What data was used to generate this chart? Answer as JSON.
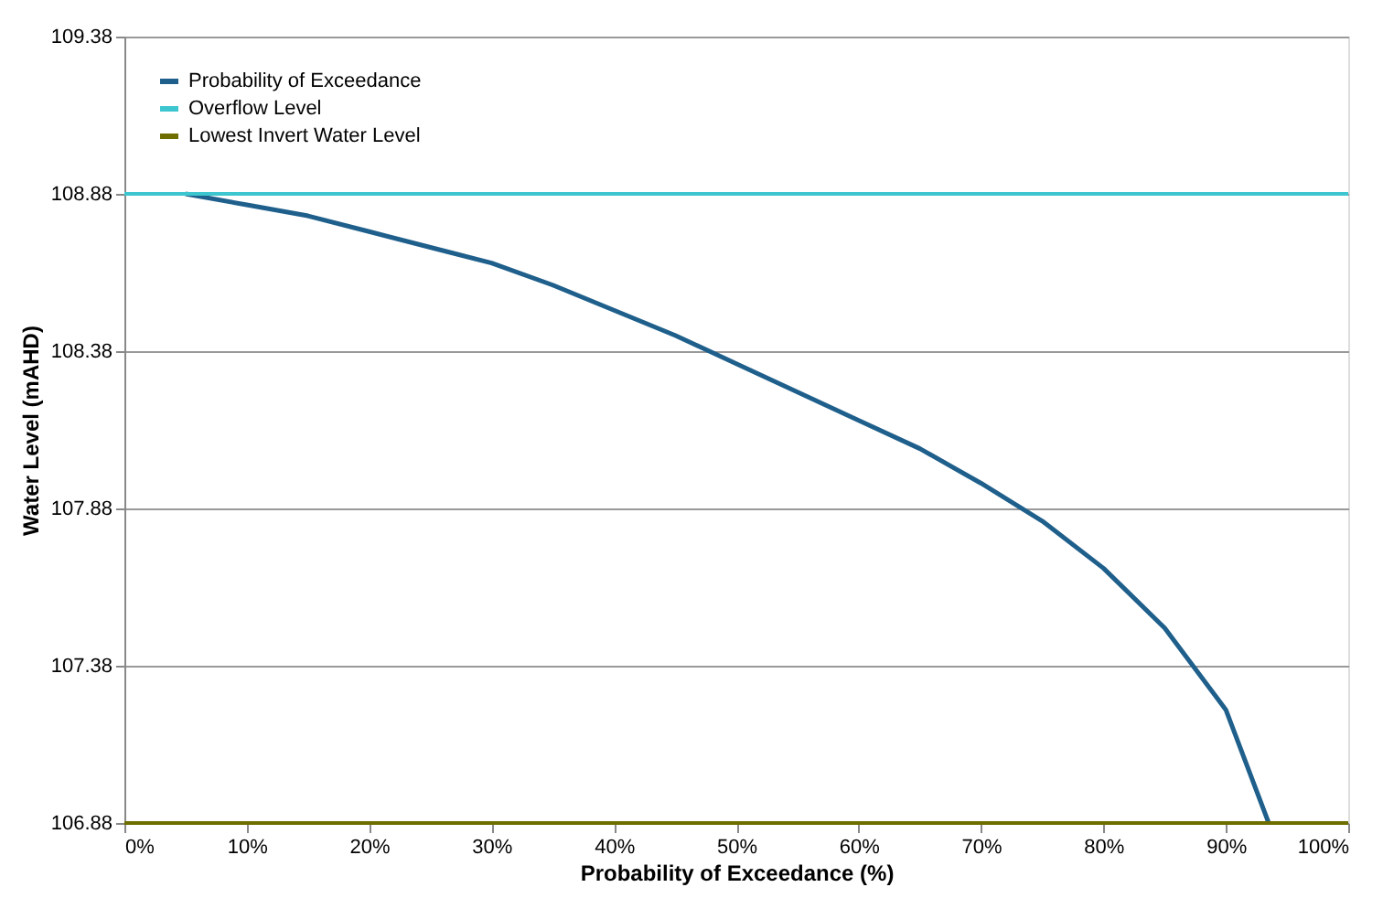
{
  "chart_data": {
    "type": "line",
    "xlabel": "Probability of Exceedance (%)",
    "ylabel": "Water Level (mAHD)",
    "x": [
      5,
      10,
      15,
      20,
      25,
      30,
      35,
      40,
      45,
      50,
      55,
      60,
      65,
      70,
      75,
      80,
      85,
      90,
      93.5
    ],
    "series": [
      {
        "name": "Probability of Exceedance",
        "color": "#1f5f8b",
        "values": [
          108.88,
          108.845,
          108.81,
          108.76,
          108.71,
          108.66,
          108.59,
          108.51,
          108.43,
          108.34,
          108.25,
          108.16,
          108.07,
          107.96,
          107.84,
          107.69,
          107.5,
          107.24,
          106.88
        ]
      }
    ],
    "ref_lines": [
      {
        "axis": "y",
        "value": 108.88,
        "label": "Overflow Level",
        "color": "#3ec6d0"
      },
      {
        "axis": "y",
        "value": 106.88,
        "label": "Lowest Invert Water Level",
        "color": "#6e6e00"
      }
    ],
    "xlim": [
      0,
      100
    ],
    "xticks": [
      {
        "value": 0,
        "label": "0%"
      },
      {
        "value": 10,
        "label": "10%"
      },
      {
        "value": 20,
        "label": "20%"
      },
      {
        "value": 30,
        "label": "30%"
      },
      {
        "value": 40,
        "label": "40%"
      },
      {
        "value": 50,
        "label": "50%"
      },
      {
        "value": 60,
        "label": "60%"
      },
      {
        "value": 70,
        "label": "70%"
      },
      {
        "value": 80,
        "label": "80%"
      },
      {
        "value": 90,
        "label": "90%"
      },
      {
        "value": 100,
        "label": "100%"
      }
    ],
    "ylim": [
      106.88,
      109.38
    ],
    "yticks": [
      106.88,
      107.38,
      107.88,
      108.38,
      108.88,
      109.38
    ],
    "grid": "y",
    "legend": "top left",
    "marker": "none",
    "line_style": "solid"
  }
}
